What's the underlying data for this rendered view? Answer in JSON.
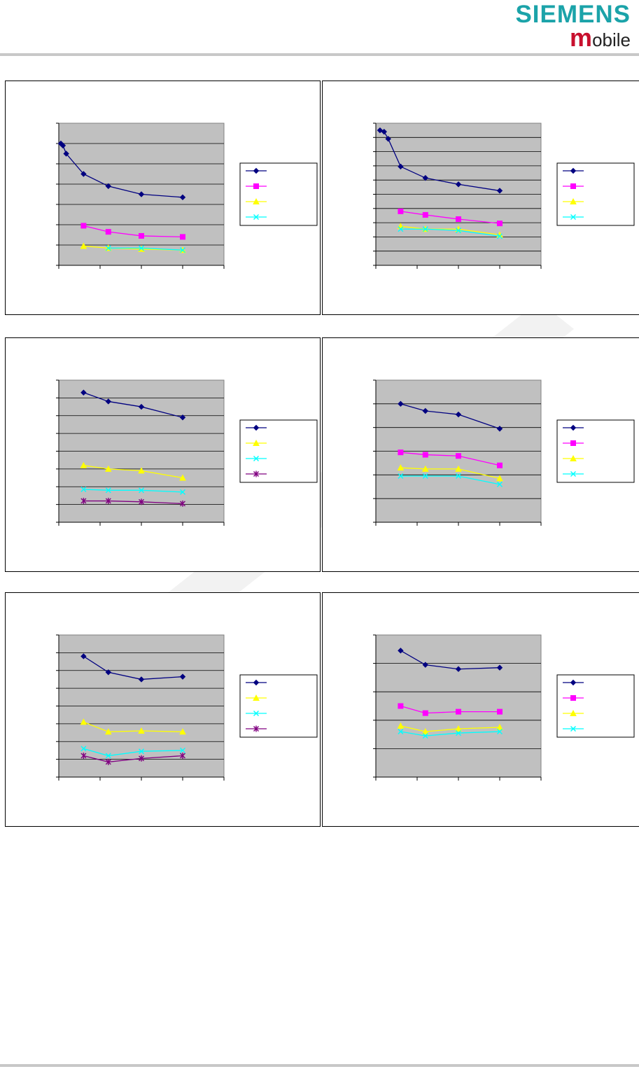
{
  "header": {
    "brand": "SIEMENS",
    "sub_initial": "m",
    "sub_rest": "obile"
  },
  "colors": {
    "plot_bg": "#c0c0c0",
    "navy": "#000080",
    "magenta": "#ff00ff",
    "yellow": "#ffff00",
    "cyan": "#00ffff",
    "purple": "#800080",
    "logo_teal": "#1ba3a9"
  },
  "chart_data": [
    {
      "type": "line",
      "xlim": [
        0,
        4
      ],
      "ylim": [
        0,
        7
      ],
      "ygrid": 7,
      "xgrid": 4,
      "legend": "right",
      "series": [
        {
          "color": "navy",
          "marker": "diamond",
          "x": [
            0.05,
            0.1,
            0.18,
            0.6,
            1.2,
            2.0,
            3.0
          ],
          "y": [
            6.0,
            5.9,
            5.5,
            4.5,
            3.9,
            3.5,
            3.35
          ]
        },
        {
          "color": "magenta",
          "marker": "square",
          "x": [
            0.6,
            1.2,
            2.0,
            3.0
          ],
          "y": [
            1.95,
            1.65,
            1.45,
            1.4
          ]
        },
        {
          "color": "yellow",
          "marker": "triangle",
          "x": [
            0.6,
            1.2,
            2.0,
            3.0
          ],
          "y": [
            0.95,
            0.85,
            0.8,
            0.75
          ]
        },
        {
          "color": "cyan",
          "marker": "x",
          "x": [
            1.2,
            2.0,
            3.0
          ],
          "y": [
            0.85,
            0.85,
            0.75
          ]
        }
      ]
    },
    {
      "type": "line",
      "xlim": [
        0,
        4
      ],
      "ylim": [
        0,
        10
      ],
      "ygrid": 10,
      "xgrid": 4,
      "legend": "right",
      "series": [
        {
          "color": "navy",
          "marker": "diamond",
          "x": [
            0.1,
            0.2,
            0.3,
            0.6,
            1.2,
            2.0,
            3.0
          ],
          "y": [
            9.5,
            9.4,
            8.9,
            6.95,
            6.15,
            5.7,
            5.25
          ]
        },
        {
          "color": "magenta",
          "marker": "square",
          "x": [
            0.6,
            1.2,
            2.0,
            3.0
          ],
          "y": [
            3.8,
            3.55,
            3.25,
            2.95
          ]
        },
        {
          "color": "yellow",
          "marker": "triangle",
          "x": [
            0.6,
            1.2,
            2.0,
            3.0
          ],
          "y": [
            2.75,
            2.55,
            2.55,
            2.15
          ]
        },
        {
          "color": "cyan",
          "marker": "x",
          "x": [
            0.6,
            1.2,
            2.0,
            3.0
          ],
          "y": [
            2.55,
            2.55,
            2.45,
            2.05
          ]
        }
      ]
    },
    {
      "type": "line",
      "xlim": [
        0,
        4
      ],
      "ylim": [
        0,
        8
      ],
      "ygrid": 8,
      "xgrid": 4,
      "legend": "right",
      "series": [
        {
          "color": "navy",
          "marker": "diamond",
          "x": [
            0.6,
            1.2,
            2.0,
            3.0
          ],
          "y": [
            7.3,
            6.8,
            6.5,
            5.9
          ]
        },
        {
          "color": "yellow",
          "marker": "triangle",
          "x": [
            0.6,
            1.2,
            2.0,
            3.0
          ],
          "y": [
            3.2,
            3.0,
            2.9,
            2.5
          ]
        },
        {
          "color": "cyan",
          "marker": "x",
          "x": [
            0.6,
            1.2,
            2.0,
            3.0
          ],
          "y": [
            1.85,
            1.8,
            1.8,
            1.7
          ]
        },
        {
          "color": "purple",
          "marker": "star",
          "x": [
            0.6,
            1.2,
            2.0,
            3.0
          ],
          "y": [
            1.2,
            1.2,
            1.15,
            1.05
          ]
        }
      ]
    },
    {
      "type": "line",
      "xlim": [
        0,
        4
      ],
      "ylim": [
        0,
        6
      ],
      "ygrid": 6,
      "xgrid": 4,
      "legend": "right",
      "series": [
        {
          "color": "navy",
          "marker": "diamond",
          "x": [
            0.6,
            1.2,
            2.0,
            3.0
          ],
          "y": [
            5.0,
            4.7,
            4.55,
            3.95
          ]
        },
        {
          "color": "magenta",
          "marker": "square",
          "x": [
            0.6,
            1.2,
            2.0,
            3.0
          ],
          "y": [
            2.95,
            2.85,
            2.8,
            2.4
          ]
        },
        {
          "color": "yellow",
          "marker": "triangle",
          "x": [
            0.6,
            1.2,
            2.0,
            3.0
          ],
          "y": [
            2.3,
            2.25,
            2.25,
            1.85
          ]
        },
        {
          "color": "cyan",
          "marker": "x",
          "x": [
            0.6,
            1.2,
            2.0,
            3.0
          ],
          "y": [
            1.95,
            1.95,
            1.95,
            1.6
          ]
        }
      ]
    },
    {
      "type": "line",
      "xlim": [
        0,
        4
      ],
      "ylim": [
        0,
        8
      ],
      "ygrid": 8,
      "xgrid": 4,
      "legend": "right",
      "series": [
        {
          "color": "navy",
          "marker": "diamond",
          "x": [
            0.6,
            1.2,
            2.0,
            3.0
          ],
          "y": [
            6.8,
            5.9,
            5.5,
            5.65
          ]
        },
        {
          "color": "yellow",
          "marker": "triangle",
          "x": [
            0.6,
            1.2,
            2.0,
            3.0
          ],
          "y": [
            3.1,
            2.55,
            2.6,
            2.55
          ]
        },
        {
          "color": "cyan",
          "marker": "x",
          "x": [
            0.6,
            1.2,
            2.0,
            3.0
          ],
          "y": [
            1.6,
            1.2,
            1.45,
            1.5
          ]
        },
        {
          "color": "purple",
          "marker": "star",
          "x": [
            0.6,
            1.2,
            2.0,
            3.0
          ],
          "y": [
            1.2,
            0.85,
            1.05,
            1.2
          ]
        }
      ]
    },
    {
      "type": "line",
      "xlim": [
        0,
        4
      ],
      "ylim": [
        0,
        5
      ],
      "ygrid": 5,
      "xgrid": 4,
      "legend": "right",
      "series": [
        {
          "color": "navy",
          "marker": "diamond",
          "x": [
            0.6,
            1.2,
            2.0,
            3.0
          ],
          "y": [
            4.45,
            3.95,
            3.8,
            3.85
          ]
        },
        {
          "color": "magenta",
          "marker": "square",
          "x": [
            0.6,
            1.2,
            2.0,
            3.0
          ],
          "y": [
            2.5,
            2.25,
            2.3,
            2.3
          ]
        },
        {
          "color": "yellow",
          "marker": "triangle",
          "x": [
            0.6,
            1.2,
            2.0,
            3.0
          ],
          "y": [
            1.8,
            1.6,
            1.7,
            1.75
          ]
        },
        {
          "color": "cyan",
          "marker": "x",
          "x": [
            0.6,
            1.2,
            2.0,
            3.0
          ],
          "y": [
            1.6,
            1.45,
            1.55,
            1.6
          ]
        }
      ]
    }
  ]
}
